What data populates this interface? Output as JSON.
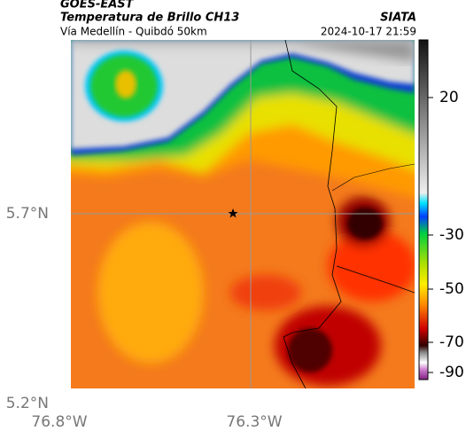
{
  "header": {
    "satellite": "GOES-EAST",
    "product": "Temperatura de Brillo CH13",
    "source": "SIATA",
    "location": "Vía Medellín - Quibdó 50km",
    "datetime": "2024-10-17 21:59"
  },
  "map": {
    "lat_labels": [
      "5.7°N",
      "5.2°N"
    ],
    "lon_labels": [
      "76.8°W",
      "76.3°W"
    ]
  },
  "colorbar": {
    "tick_labels": [
      "20",
      "-30",
      "-50",
      "-70",
      "-90"
    ]
  }
}
